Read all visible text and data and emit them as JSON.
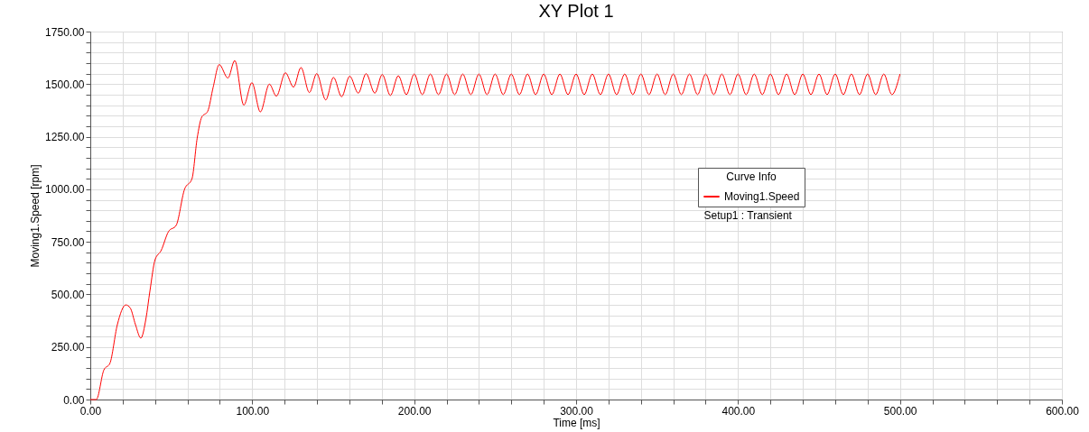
{
  "chart_data": {
    "type": "line",
    "title": "XY Plot 1",
    "xlabel": "Time [ms]",
    "ylabel": "Moving1.Speed [rpm]",
    "legend_title": "Curve Info",
    "legend": "right",
    "grid": true,
    "marker": "none",
    "line_style": "solid",
    "annotations": [
      "Setup1 : Transient"
    ],
    "xlim": [
      0,
      600
    ],
    "ylim": [
      0,
      1750
    ],
    "xticks": [
      {
        "value": 0,
        "label": "0.00"
      },
      {
        "value": 20,
        "label": null
      },
      {
        "value": 40,
        "label": null
      },
      {
        "value": 60,
        "label": null
      },
      {
        "value": 80,
        "label": null
      },
      {
        "value": 100,
        "label": "100.00"
      },
      {
        "value": 120,
        "label": null
      },
      {
        "value": 140,
        "label": null
      },
      {
        "value": 160,
        "label": null
      },
      {
        "value": 180,
        "label": null
      },
      {
        "value": 200,
        "label": "200.00"
      },
      {
        "value": 220,
        "label": null
      },
      {
        "value": 240,
        "label": null
      },
      {
        "value": 260,
        "label": null
      },
      {
        "value": 280,
        "label": null
      },
      {
        "value": 300,
        "label": "300.00"
      },
      {
        "value": 320,
        "label": null
      },
      {
        "value": 340,
        "label": null
      },
      {
        "value": 360,
        "label": null
      },
      {
        "value": 380,
        "label": null
      },
      {
        "value": 400,
        "label": "400.00"
      },
      {
        "value": 420,
        "label": null
      },
      {
        "value": 440,
        "label": null
      },
      {
        "value": 460,
        "label": null
      },
      {
        "value": 480,
        "label": null
      },
      {
        "value": 500,
        "label": "500.00"
      },
      {
        "value": 520,
        "label": null
      },
      {
        "value": 540,
        "label": null
      },
      {
        "value": 560,
        "label": null
      },
      {
        "value": 580,
        "label": null
      },
      {
        "value": 600,
        "label": "600.00"
      }
    ],
    "yticks": [
      {
        "value": 0,
        "label": "0.00"
      },
      {
        "value": 50,
        "label": null
      },
      {
        "value": 100,
        "label": null
      },
      {
        "value": 150,
        "label": null
      },
      {
        "value": 200,
        "label": null
      },
      {
        "value": 250,
        "label": "250.00"
      },
      {
        "value": 300,
        "label": null
      },
      {
        "value": 350,
        "label": null
      },
      {
        "value": 400,
        "label": null
      },
      {
        "value": 450,
        "label": null
      },
      {
        "value": 500,
        "label": "500.00"
      },
      {
        "value": 550,
        "label": null
      },
      {
        "value": 600,
        "label": null
      },
      {
        "value": 650,
        "label": null
      },
      {
        "value": 700,
        "label": null
      },
      {
        "value": 750,
        "label": "750.00"
      },
      {
        "value": 800,
        "label": null
      },
      {
        "value": 850,
        "label": null
      },
      {
        "value": 900,
        "label": null
      },
      {
        "value": 950,
        "label": null
      },
      {
        "value": 1000,
        "label": "1000.00"
      },
      {
        "value": 1050,
        "label": null
      },
      {
        "value": 1100,
        "label": null
      },
      {
        "value": 1150,
        "label": null
      },
      {
        "value": 1200,
        "label": null
      },
      {
        "value": 1250,
        "label": "1250.00"
      },
      {
        "value": 1300,
        "label": null
      },
      {
        "value": 1350,
        "label": null
      },
      {
        "value": 1400,
        "label": null
      },
      {
        "value": 1450,
        "label": null
      },
      {
        "value": 1500,
        "label": "1500.00"
      },
      {
        "value": 1550,
        "label": null
      },
      {
        "value": 1600,
        "label": null
      },
      {
        "value": 1650,
        "label": null
      },
      {
        "value": 1700,
        "label": null
      },
      {
        "value": 1750,
        "label": "1750.00"
      }
    ],
    "series": [
      {
        "name": "Moving1.Speed",
        "color": "#ff0000",
        "x": [
          0,
          3.7,
          8.4,
          12.1,
          16.7,
          21.9,
          24.7,
          27.9,
          31.2,
          34.4,
          36.8,
          40,
          43.7,
          48.3,
          53,
          58.2,
          62.8,
          66,
          68.8,
          72.5,
          75.9,
          79.6,
          85,
          89.2,
          94.8,
          99.8,
          105,
          110.6,
          114.9,
          120.5,
          125.5,
          130.1,
          135.3,
          139.8,
          145.4,
          150.2,
          155.2,
          160.2,
          165.5,
          170.3,
          175.7,
          180.3,
          185.3,
          190.2,
          195.2,
          200,
          205,
          210,
          215,
          220,
          225,
          230,
          235,
          240,
          245,
          250,
          255,
          260,
          265,
          270,
          275,
          280,
          285,
          290,
          295,
          300,
          305,
          310,
          315,
          320,
          325,
          330,
          335,
          340,
          345,
          350,
          355,
          360,
          365,
          370,
          375,
          380,
          385,
          390,
          395,
          400,
          405,
          410,
          415,
          420,
          425,
          430,
          435,
          440,
          445,
          450,
          455,
          460,
          465,
          470,
          475,
          480,
          485,
          490,
          495,
          500
        ],
        "values": [
          0,
          0,
          141,
          172,
          356,
          450,
          435,
          356,
          292,
          386,
          515,
          665,
          708,
          799,
          828,
          1000,
          1050,
          1243,
          1343,
          1371,
          1486,
          1593,
          1529,
          1612,
          1400,
          1507,
          1368,
          1500,
          1443,
          1554,
          1486,
          1579,
          1460,
          1550,
          1425,
          1532,
          1440,
          1538,
          1457,
          1550,
          1457,
          1546,
          1446,
          1540,
          1450,
          1548,
          1450,
          1548,
          1450,
          1548,
          1450,
          1548,
          1450,
          1548,
          1450,
          1548,
          1450,
          1548,
          1450,
          1548,
          1450,
          1548,
          1450,
          1548,
          1450,
          1548,
          1450,
          1548,
          1450,
          1548,
          1450,
          1548,
          1450,
          1548,
          1450,
          1548,
          1450,
          1548,
          1450,
          1548,
          1450,
          1548,
          1450,
          1548,
          1450,
          1548,
          1450,
          1548,
          1450,
          1548,
          1450,
          1548,
          1450,
          1548,
          1450,
          1548,
          1450,
          1548,
          1450,
          1548,
          1450,
          1548,
          1450,
          1548,
          1450,
          1548
        ]
      }
    ]
  }
}
